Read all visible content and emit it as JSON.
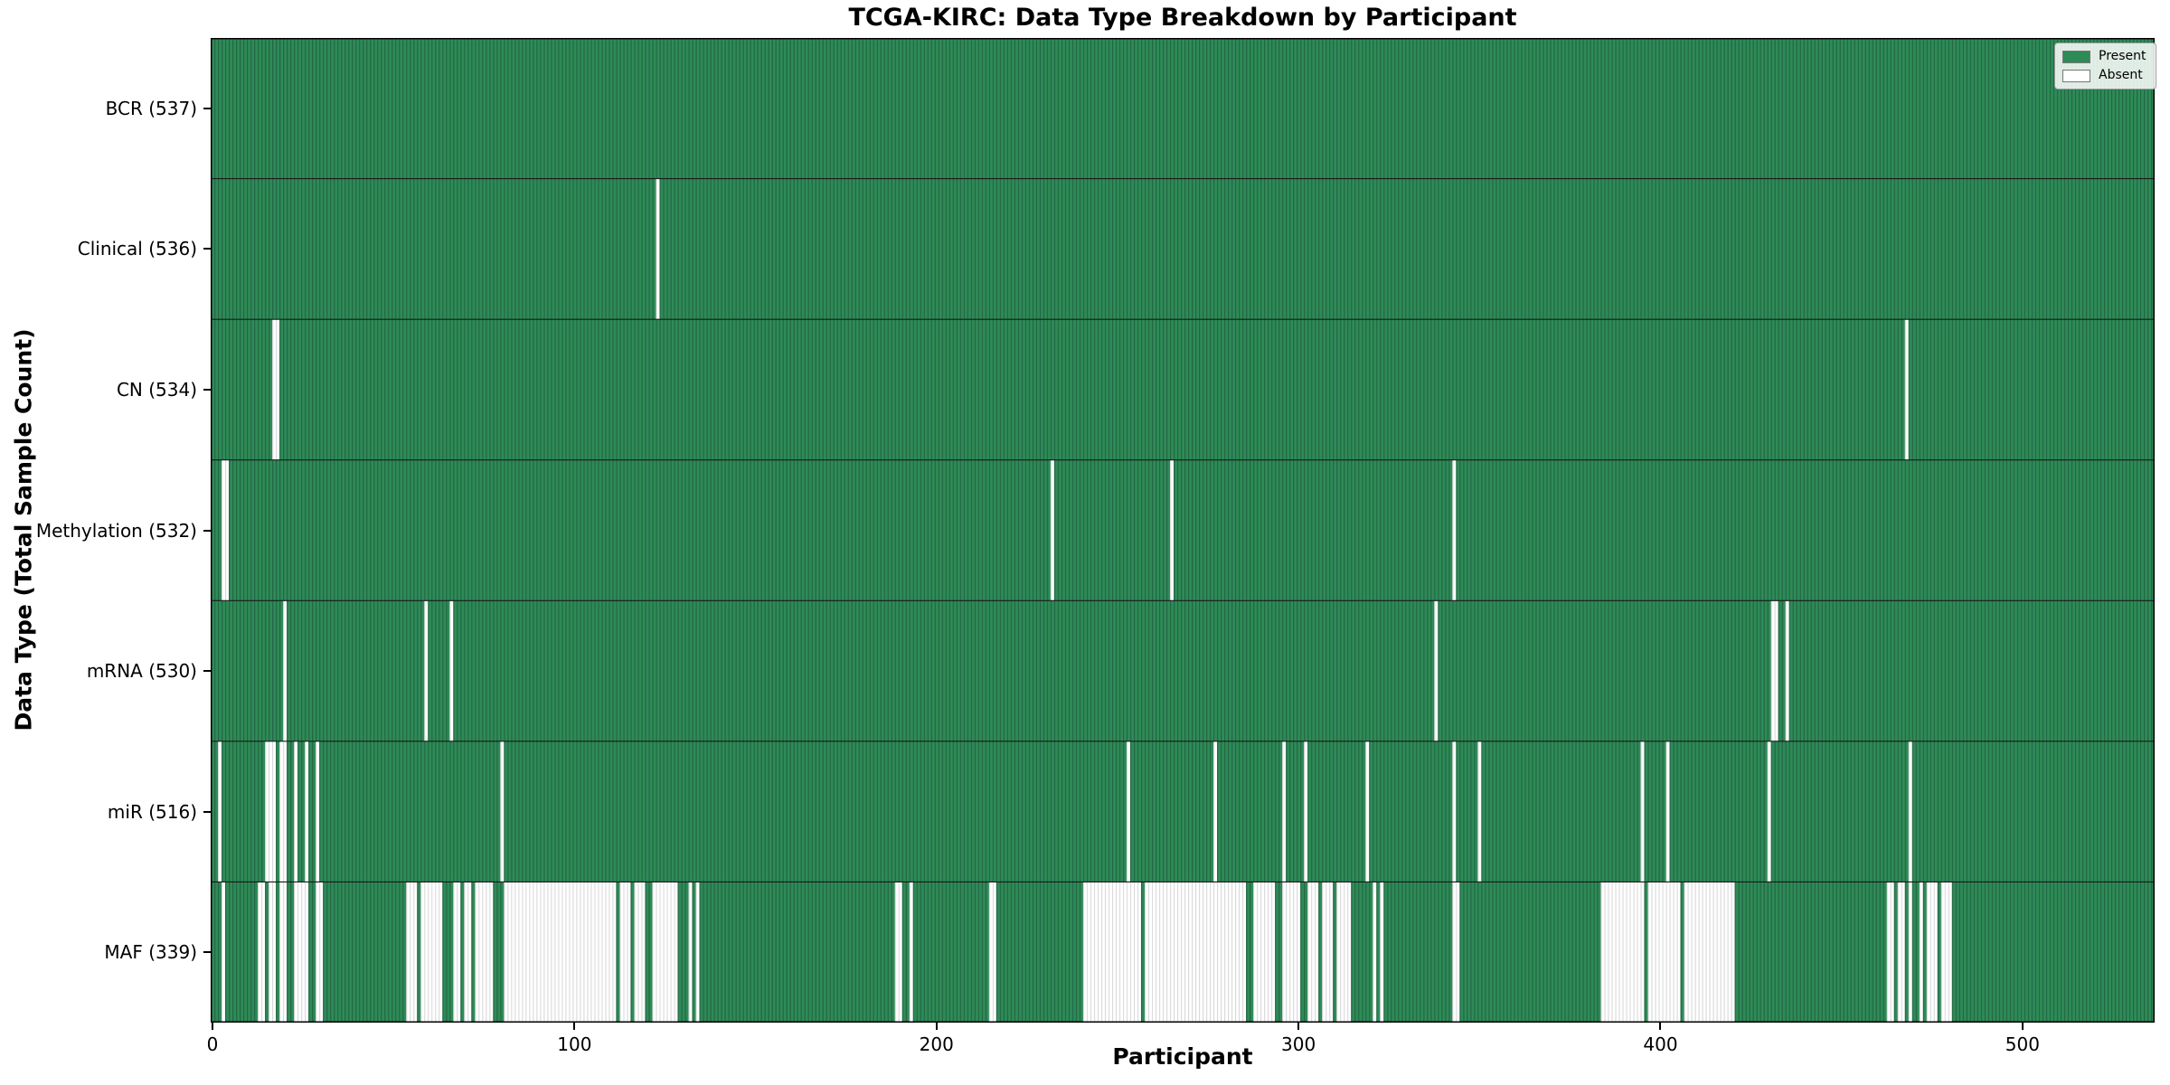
{
  "title": "TCGA-KIRC: Data Type Breakdown by Participant",
  "xlabel": "Participant",
  "ylabel": "Data Type (Total Sample Count)",
  "legend": {
    "present_label": "Present",
    "absent_label": "Absent"
  },
  "colors": {
    "present": "#2e8b57",
    "present_edge": "#226744",
    "absent": "#ffffff",
    "absent_edge": "#d9d9d9",
    "row_separator": "#1a1a1a",
    "plot_border": "#000000"
  },
  "chart_data": {
    "type": "heatmap",
    "title": "TCGA-KIRC: Data Type Breakdown by Participant",
    "xlabel": "Participant",
    "ylabel": "Data Type (Total Sample Count)",
    "legend_entries": [
      "Present",
      "Absent"
    ],
    "legend_position": "upper right",
    "grid": false,
    "n_participants": 537,
    "xlim": [
      0,
      537
    ],
    "x_ticks": [
      0,
      100,
      200,
      300,
      400,
      500
    ],
    "cell_values": "present=1 absent=0; absent_ranges are inclusive participant index ranges",
    "rows": [
      {
        "label": "BCR (537)",
        "name": "BCR",
        "present_count": 537,
        "absent_count": 0,
        "absent_ranges": []
      },
      {
        "label": "Clinical (536)",
        "name": "Clinical",
        "present_count": 536,
        "absent_count": 1,
        "absent_ranges": [
          [
            123,
            123
          ]
        ]
      },
      {
        "label": "CN (534)",
        "name": "CN",
        "present_count": 534,
        "absent_count": 3,
        "absent_ranges": [
          [
            17,
            18
          ],
          [
            468,
            468
          ]
        ]
      },
      {
        "label": "Methylation (532)",
        "name": "Methylation",
        "present_count": 532,
        "absent_count": 5,
        "absent_ranges": [
          [
            3,
            4
          ],
          [
            232,
            232
          ],
          [
            265,
            265
          ],
          [
            343,
            343
          ]
        ]
      },
      {
        "label": "mRNA (530)",
        "name": "mRNA",
        "present_count": 530,
        "absent_count": 7,
        "absent_ranges": [
          [
            20,
            20
          ],
          [
            59,
            59
          ],
          [
            66,
            66
          ],
          [
            338,
            338
          ],
          [
            431,
            432
          ],
          [
            435,
            435
          ]
        ]
      },
      {
        "label": "miR (516)",
        "name": "miR",
        "present_count": 516,
        "absent_count": 21,
        "absent_ranges": [
          [
            2,
            2
          ],
          [
            15,
            17
          ],
          [
            19,
            20
          ],
          [
            23,
            23
          ],
          [
            26,
            26
          ],
          [
            29,
            29
          ],
          [
            80,
            80
          ],
          [
            253,
            253
          ],
          [
            277,
            277
          ],
          [
            296,
            296
          ],
          [
            302,
            302
          ],
          [
            319,
            319
          ],
          [
            343,
            343
          ],
          [
            350,
            350
          ],
          [
            395,
            395
          ],
          [
            402,
            402
          ],
          [
            430,
            430
          ],
          [
            469,
            469
          ]
        ]
      },
      {
        "label": "MAF (339)",
        "name": "MAF",
        "present_count": 339,
        "absent_count": 198,
        "absent_ranges": [
          [
            3,
            3
          ],
          [
            13,
            14
          ],
          [
            16,
            17
          ],
          [
            19,
            20
          ],
          [
            23,
            26
          ],
          [
            29,
            30
          ],
          [
            54,
            56
          ],
          [
            58,
            63
          ],
          [
            67,
            68
          ],
          [
            70,
            71
          ],
          [
            73,
            77
          ],
          [
            81,
            111
          ],
          [
            113,
            115
          ],
          [
            117,
            119
          ],
          [
            122,
            128
          ],
          [
            132,
            132
          ],
          [
            134,
            134
          ],
          [
            189,
            190
          ],
          [
            193,
            193
          ],
          [
            215,
            216
          ],
          [
            241,
            256
          ],
          [
            258,
            285
          ],
          [
            288,
            293
          ],
          [
            296,
            300
          ],
          [
            303,
            305
          ],
          [
            307,
            309
          ],
          [
            311,
            314
          ],
          [
            321,
            321
          ],
          [
            323,
            323
          ],
          [
            343,
            344
          ],
          [
            384,
            395
          ],
          [
            397,
            405
          ],
          [
            407,
            420
          ],
          [
            463,
            464
          ],
          [
            466,
            467
          ],
          [
            469,
            469
          ],
          [
            472,
            472
          ],
          [
            474,
            476
          ],
          [
            478,
            480
          ]
        ]
      }
    ]
  }
}
